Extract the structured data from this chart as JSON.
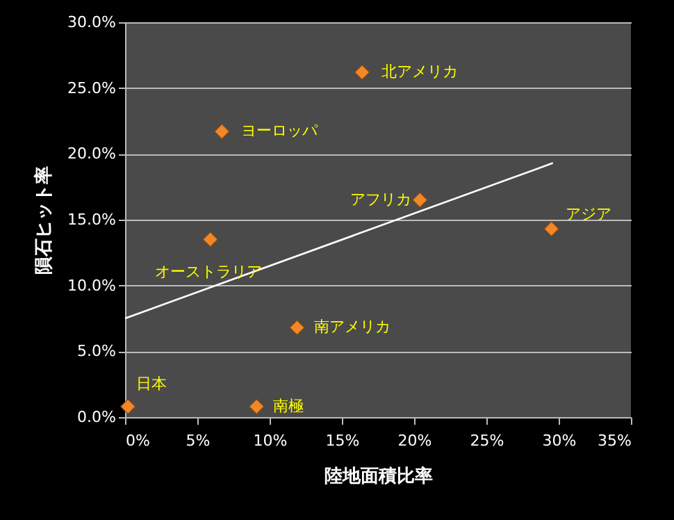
{
  "chart_data": {
    "type": "scatter",
    "xlabel": "陸地面積比率",
    "ylabel": "隕石ヒット率",
    "series": [
      {
        "color": "#f0882a",
        "marker": "diamond",
        "x": [
          16.4,
          6.7,
          20.4,
          29.5,
          5.9,
          11.9,
          0.2,
          9.1
        ],
        "values": [
          26.2,
          21.7,
          16.5,
          14.3,
          13.5,
          6.8,
          0.8,
          0.8
        ]
      },
      {
        "type": "line",
        "color": "#ffffff",
        "x": [
          0,
          29.6
        ],
        "values": [
          7.5,
          19.3
        ]
      }
    ],
    "xlim": [
      0,
      35
    ],
    "xticks": [
      {
        "value": 0,
        "label": "0%"
      },
      {
        "value": 5,
        "label": "5%"
      },
      {
        "value": 10,
        "label": "10%"
      },
      {
        "value": 15,
        "label": "15%"
      },
      {
        "value": 20,
        "label": "20%"
      },
      {
        "value": 25,
        "label": "25%"
      },
      {
        "value": 30,
        "label": "30%"
      },
      {
        "value": 35,
        "label": "35%"
      }
    ],
    "ylim": [
      0,
      30
    ],
    "yticks": [
      {
        "value": 0,
        "label": "0.0%"
      },
      {
        "value": 5,
        "label": "5.0%"
      },
      {
        "value": 10,
        "label": "10.0%"
      },
      {
        "value": 15,
        "label": "15.0%"
      },
      {
        "value": 20,
        "label": "20.0%"
      },
      {
        "value": 25,
        "label": "25.0%"
      },
      {
        "value": 30,
        "label": "30.0%"
      }
    ],
    "grid": "y",
    "annotations": [
      {
        "text": "北アメリカ",
        "x": 16.4,
        "y": 26.2
      },
      {
        "text": "ヨーロッパ",
        "x": 6.7,
        "y": 21.7
      },
      {
        "text": "アフリカ",
        "x": 20.4,
        "y": 16.5
      },
      {
        "text": "アジア",
        "x": 29.5,
        "y": 14.3
      },
      {
        "text": "オーストラリア",
        "x": 5.9,
        "y": 13.5
      },
      {
        "text": "南アメリカ",
        "x": 11.9,
        "y": 6.8
      },
      {
        "text": "日本",
        "x": 0.2,
        "y": 0.8
      },
      {
        "text": "南極",
        "x": 9.1,
        "y": 0.8
      }
    ]
  }
}
